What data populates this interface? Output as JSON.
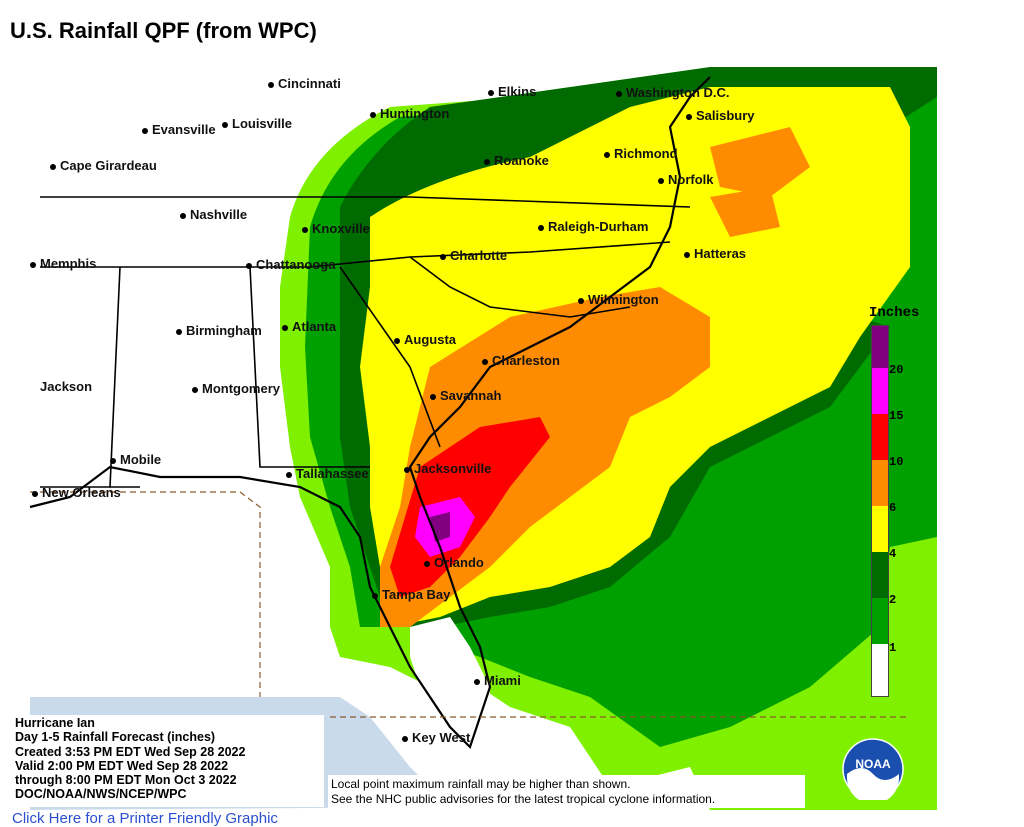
{
  "page": {
    "title": "U.S. Rainfall QPF (from WPC)",
    "bottom_link": "Click Here for a Printer Friendly Graphic"
  },
  "map": {
    "cities": [
      {
        "name": "Cincinnati"
      },
      {
        "name": "Elkins"
      },
      {
        "name": "Washington D.C."
      },
      {
        "name": "Huntington"
      },
      {
        "name": "Salisbury"
      },
      {
        "name": "Evansville"
      },
      {
        "name": "Louisville"
      },
      {
        "name": "Roanoke"
      },
      {
        "name": "Richmond"
      },
      {
        "name": "Cape Girardeau"
      },
      {
        "name": "Norfolk"
      },
      {
        "name": "Nashville"
      },
      {
        "name": "Knoxville"
      },
      {
        "name": "Raleigh-Durham"
      },
      {
        "name": "Hatteras"
      },
      {
        "name": "Charlotte"
      },
      {
        "name": "Memphis"
      },
      {
        "name": "Chattanooga"
      },
      {
        "name": "Wilmington"
      },
      {
        "name": "Birmingham"
      },
      {
        "name": "Atlanta"
      },
      {
        "name": "Augusta"
      },
      {
        "name": "Charleston"
      },
      {
        "name": "Jackson"
      },
      {
        "name": "Montgomery"
      },
      {
        "name": "Savannah"
      },
      {
        "name": "Mobile"
      },
      {
        "name": "Tallahassee"
      },
      {
        "name": "Jacksonville"
      },
      {
        "name": "New Orleans"
      },
      {
        "name": "Orlando"
      },
      {
        "name": "Tampa Bay"
      },
      {
        "name": "Miami"
      },
      {
        "name": "Key West"
      }
    ]
  },
  "legend": {
    "title": "Inches",
    "ticks": [
      "20",
      "15",
      "10",
      "6",
      "4",
      "2",
      "1"
    ],
    "colors": [
      "#ffffff",
      "#7ff000",
      "#00a000",
      "#006b00",
      "#ffff00",
      "#ff8c00",
      "#ff0000",
      "#ff00ff",
      "#800080"
    ]
  },
  "info": {
    "line1": "Hurricane Ian",
    "line2": "Day 1-5 Rainfall Forecast (inches)",
    "line3": "Created 3:53 PM EDT Wed Sep 28 2022",
    "line4": "Valid 2:00 PM EDT Wed Sep 28 2022",
    "line5": "through 8:00 PM EDT Mon Oct 3 2022",
    "line6": "DOC/NOAA/NWS/NCEP/WPC"
  },
  "note": {
    "line1": "Local point maximum rainfall may be higher than shown.",
    "line2": "See the NHC public advisories for the latest tropical cyclone information."
  },
  "logo": {
    "text": "NOAA"
  }
}
